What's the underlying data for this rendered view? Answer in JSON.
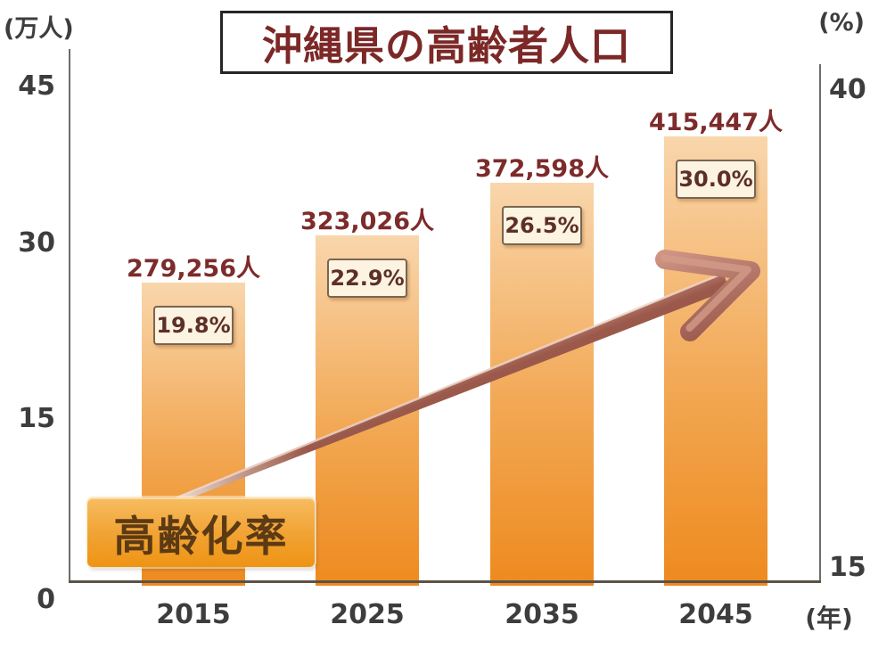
{
  "title": {
    "text": "沖縄県の高齢者人口"
  },
  "axes": {
    "left_unit": "(万人)",
    "right_unit": "(%)",
    "x_unit": "(年)",
    "left_ticks": [
      "45",
      "30",
      "15",
      "0"
    ],
    "right_ticks": [
      "40",
      "15"
    ]
  },
  "arrow_label": {
    "text": "高齢化率"
  },
  "bars": [
    {
      "year": "2015",
      "population": "279,256人",
      "rate": "19.8%"
    },
    {
      "year": "2025",
      "population": "323,026人",
      "rate": "22.9%"
    },
    {
      "year": "2035",
      "population": "372,598人",
      "rate": "26.5%"
    },
    {
      "year": "2045",
      "population": "415,447人",
      "rate": "30.0%"
    }
  ],
  "chart_data": {
    "type": "bar",
    "title": "沖縄県の高齢者人口",
    "categories": [
      "2015",
      "2025",
      "2035",
      "2045"
    ],
    "series": [
      {
        "name": "高齢者人口",
        "type": "bar",
        "axis": "left",
        "unit": "人",
        "values": [
          279256,
          323026,
          372598,
          415447
        ],
        "labels": [
          "279,256人",
          "323,026人",
          "372,598人",
          "415,447人"
        ]
      },
      {
        "name": "高齢化率",
        "type": "trend-arrow",
        "axis": "right",
        "unit": "%",
        "values": [
          19.8,
          22.9,
          26.5,
          30.0
        ],
        "labels": [
          "19.8%",
          "22.9%",
          "26.5%",
          "30.0%"
        ]
      }
    ],
    "left_axis": {
      "label": "(万人)",
      "ticks": [
        0,
        15,
        30,
        45
      ],
      "range": [
        0,
        47
      ]
    },
    "right_axis": {
      "label": "(%)",
      "ticks": [
        15,
        40
      ],
      "range": [
        15,
        41
      ]
    },
    "x_axis": {
      "label": "(年)"
    },
    "legend": "none",
    "grid": false
  },
  "colors": {
    "bar_gradient_top": "#f9d6ac",
    "bar_gradient_bottom": "#ee8a1e",
    "population_label_text": "#7d2b2b",
    "title_text": "#7b2827",
    "rate_text": "#5d2f26",
    "rate_box_bg": "#fdf3e1",
    "rate_box_border": "#7a6552",
    "arrow_label_text": "#5c3a14",
    "arrow_label_bg": "#f1a435",
    "arrow_body": "#b0705e",
    "axis_line": "#6f6b68",
    "tick_text": "#3d3d3d"
  }
}
